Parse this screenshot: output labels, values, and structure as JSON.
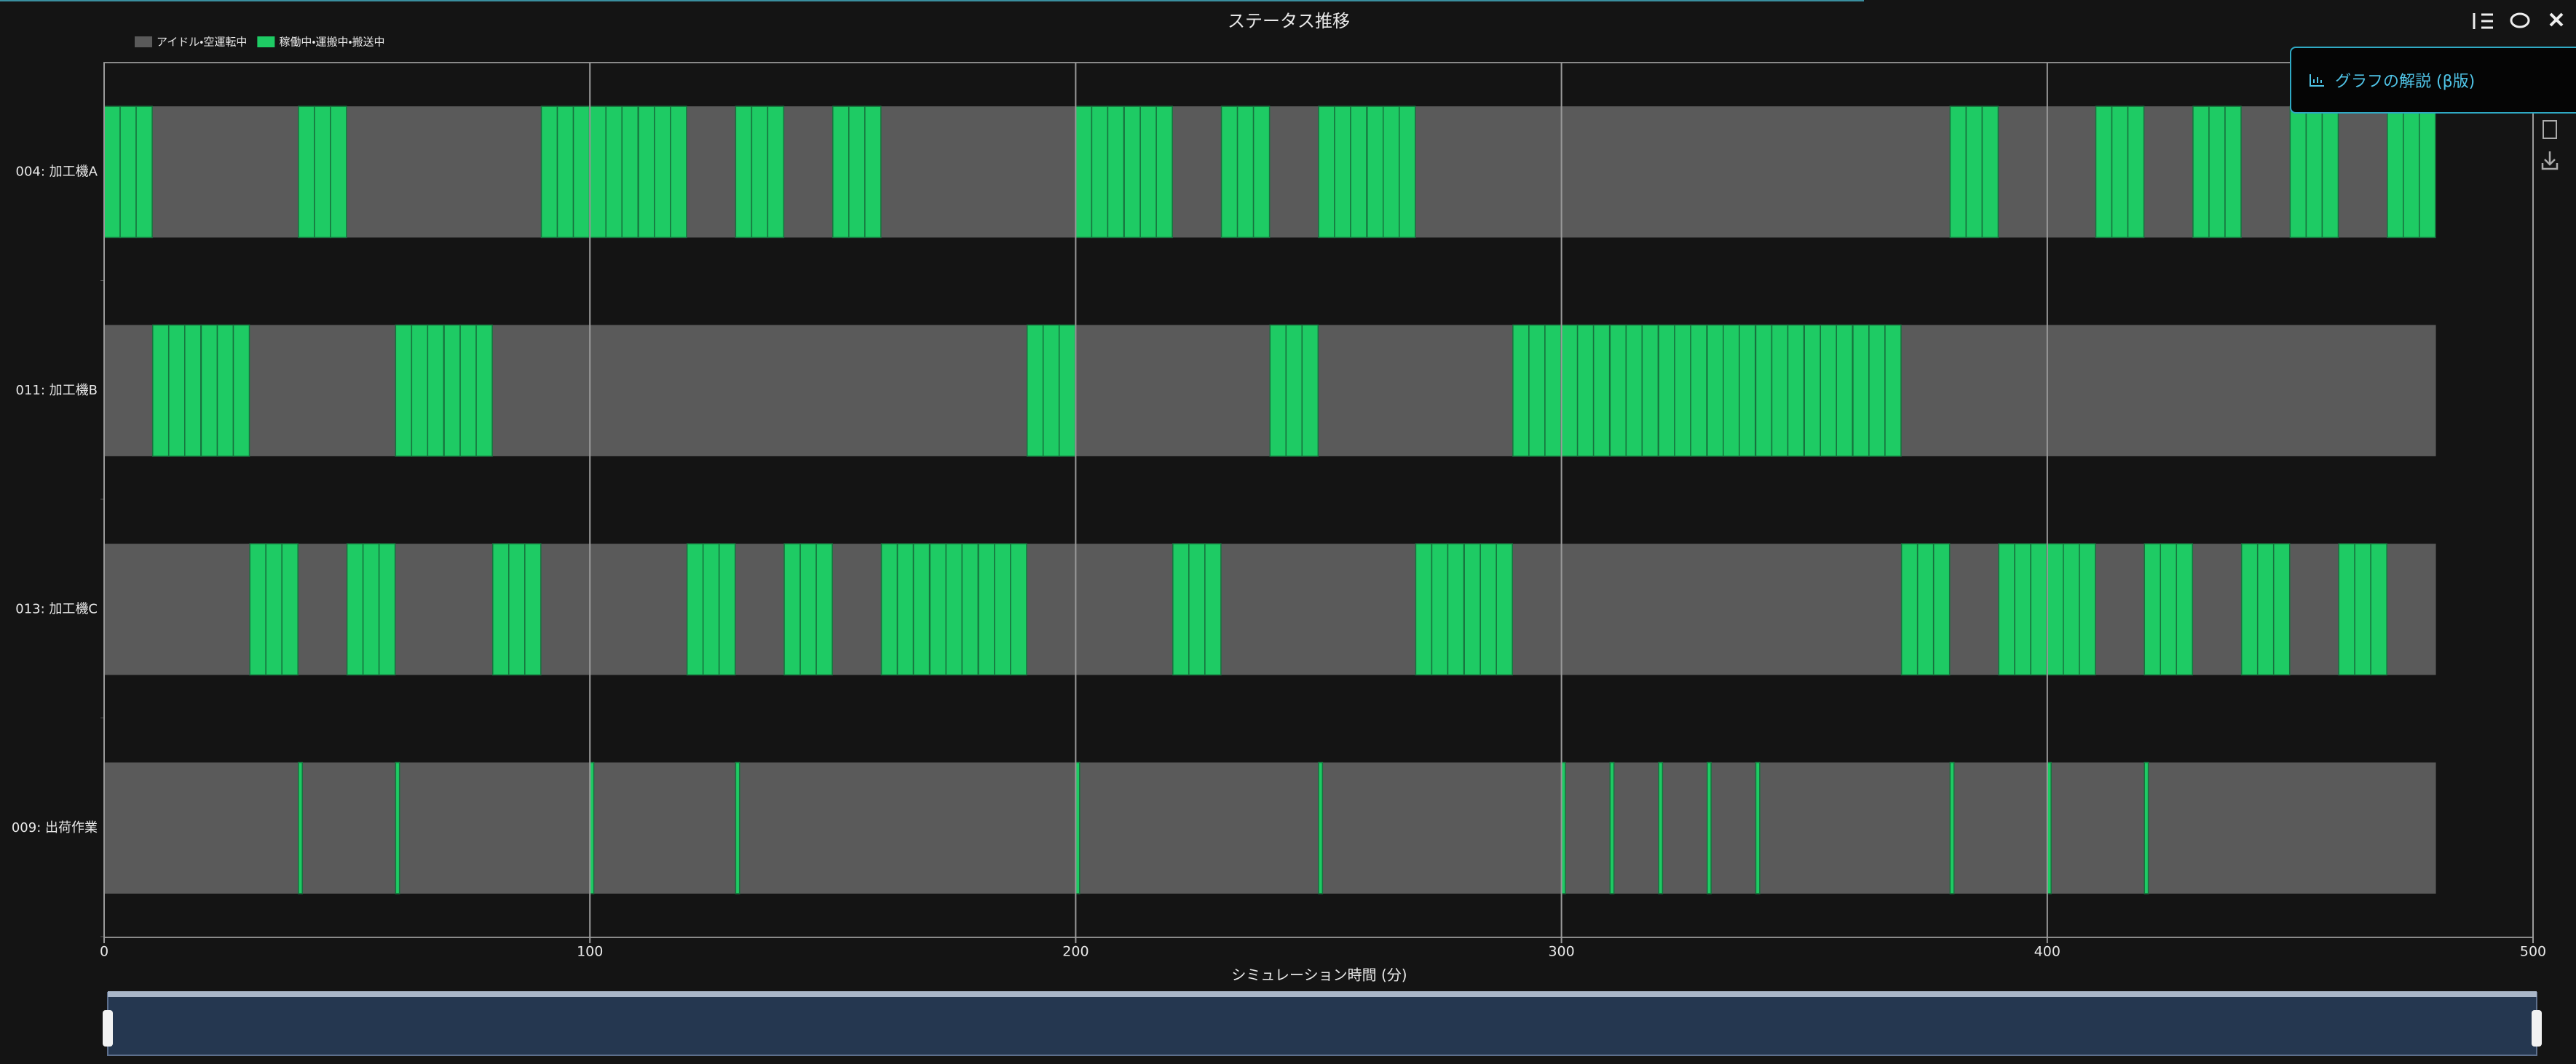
{
  "chart_data": {
    "type": "timeline",
    "title": "ステータス推移",
    "x_label": "シミュレーション時間 (分)",
    "xlim": [
      0,
      500
    ],
    "xticks": [
      0,
      100,
      200,
      300,
      400,
      500
    ],
    "grid": true,
    "legend": "top-left",
    "series": [
      {
        "name": "アイドル・空運転中",
        "color": "#5a5a5a"
      },
      {
        "name": "稼働中・運搬中・搬送中",
        "color": "#1ecb64"
      }
    ],
    "rows": [
      {
        "name": "004: 加工機A",
        "idle": [
          0,
          480
        ],
        "segments": [
          [
            0,
            3.3
          ],
          [
            3.3,
            6.6
          ],
          [
            6.6,
            9.9
          ],
          [
            40,
            43.3
          ],
          [
            43.3,
            46.6
          ],
          [
            46.6,
            49.9
          ],
          [
            90,
            93.3
          ],
          [
            93.3,
            96.6
          ],
          [
            96.6,
            99.9
          ],
          [
            100,
            103.3
          ],
          [
            103.3,
            106.6
          ],
          [
            106.6,
            109.9
          ],
          [
            110,
            113.3
          ],
          [
            113.3,
            116.6
          ],
          [
            116.6,
            119.9
          ],
          [
            130,
            133.3
          ],
          [
            133.3,
            136.6
          ],
          [
            136.6,
            139.9
          ],
          [
            150,
            153.3
          ],
          [
            153.3,
            156.6
          ],
          [
            156.6,
            159.9
          ],
          [
            200,
            203.3
          ],
          [
            203.3,
            206.6
          ],
          [
            206.6,
            209.9
          ],
          [
            210,
            213.3
          ],
          [
            213.3,
            216.6
          ],
          [
            216.6,
            219.9
          ],
          [
            230,
            233.3
          ],
          [
            233.3,
            236.6
          ],
          [
            236.6,
            239.9
          ],
          [
            250,
            253.3
          ],
          [
            253.3,
            256.6
          ],
          [
            256.6,
            259.9
          ],
          [
            260,
            263.3
          ],
          [
            263.3,
            266.6
          ],
          [
            266.6,
            269.9
          ],
          [
            380,
            383.3
          ],
          [
            383.3,
            386.6
          ],
          [
            386.6,
            389.9
          ],
          [
            410,
            413.3
          ],
          [
            413.3,
            416.6
          ],
          [
            416.6,
            419.9
          ],
          [
            430,
            433.3
          ],
          [
            433.3,
            436.6
          ],
          [
            436.6,
            439.9
          ],
          [
            450,
            453.3
          ],
          [
            453.3,
            456.6
          ],
          [
            456.6,
            459.9
          ],
          [
            470,
            473.3
          ],
          [
            473.3,
            476.6
          ],
          [
            476.6,
            479.9
          ]
        ]
      },
      {
        "name": "011: 加工機B",
        "idle": [
          0,
          480
        ],
        "segments": [
          [
            10,
            13.3
          ],
          [
            13.3,
            16.6
          ],
          [
            16.6,
            19.9
          ],
          [
            20,
            23.3
          ],
          [
            23.3,
            26.6
          ],
          [
            26.6,
            29.9
          ],
          [
            60,
            63.3
          ],
          [
            63.3,
            66.6
          ],
          [
            66.6,
            69.9
          ],
          [
            70,
            73.3
          ],
          [
            73.3,
            76.6
          ],
          [
            76.6,
            79.9
          ],
          [
            190,
            193.3
          ],
          [
            193.3,
            196.6
          ],
          [
            196.6,
            199.9
          ],
          [
            240,
            243.3
          ],
          [
            243.3,
            246.6
          ],
          [
            246.6,
            249.9
          ],
          [
            290,
            293.3
          ],
          [
            293.3,
            296.6
          ],
          [
            296.6,
            299.9
          ],
          [
            300,
            303.3
          ],
          [
            303.3,
            306.6
          ],
          [
            306.6,
            309.9
          ],
          [
            310,
            313.3
          ],
          [
            313.3,
            316.6
          ],
          [
            316.6,
            319.9
          ],
          [
            320,
            323.3
          ],
          [
            323.3,
            326.6
          ],
          [
            326.6,
            329.9
          ],
          [
            330,
            333.3
          ],
          [
            333.3,
            336.6
          ],
          [
            336.6,
            339.9
          ],
          [
            340,
            343.3
          ],
          [
            343.3,
            346.6
          ],
          [
            346.6,
            349.9
          ],
          [
            350,
            353.3
          ],
          [
            353.3,
            356.6
          ],
          [
            356.6,
            359.9
          ],
          [
            360,
            363.3
          ],
          [
            363.3,
            366.6
          ],
          [
            366.6,
            369.9
          ]
        ]
      },
      {
        "name": "013: 加工機C",
        "idle": [
          0,
          480
        ],
        "segments": [
          [
            30,
            33.3
          ],
          [
            33.3,
            36.6
          ],
          [
            36.6,
            39.9
          ],
          [
            50,
            53.3
          ],
          [
            53.3,
            56.6
          ],
          [
            56.6,
            59.9
          ],
          [
            80,
            83.3
          ],
          [
            83.3,
            86.6
          ],
          [
            86.6,
            89.9
          ],
          [
            120,
            123.3
          ],
          [
            123.3,
            126.6
          ],
          [
            126.6,
            129.9
          ],
          [
            140,
            143.3
          ],
          [
            143.3,
            146.6
          ],
          [
            146.6,
            149.9
          ],
          [
            160,
            163.3
          ],
          [
            163.3,
            166.6
          ],
          [
            166.6,
            169.9
          ],
          [
            170,
            173.3
          ],
          [
            173.3,
            176.6
          ],
          [
            176.6,
            179.9
          ],
          [
            180,
            183.3
          ],
          [
            183.3,
            186.6
          ],
          [
            186.6,
            189.9
          ],
          [
            220,
            223.3
          ],
          [
            223.3,
            226.6
          ],
          [
            226.6,
            229.9
          ],
          [
            270,
            273.3
          ],
          [
            273.3,
            276.6
          ],
          [
            276.6,
            279.9
          ],
          [
            280,
            283.3
          ],
          [
            283.3,
            286.6
          ],
          [
            286.6,
            289.9
          ],
          [
            370,
            373.3
          ],
          [
            373.3,
            376.6
          ],
          [
            376.6,
            379.9
          ],
          [
            390,
            393.3
          ],
          [
            393.3,
            396.6
          ],
          [
            396.6,
            399.9
          ],
          [
            400,
            403.3
          ],
          [
            403.3,
            406.6
          ],
          [
            406.6,
            409.9
          ],
          [
            420,
            423.3
          ],
          [
            423.3,
            426.6
          ],
          [
            426.6,
            429.9
          ],
          [
            440,
            443.3
          ],
          [
            443.3,
            446.6
          ],
          [
            446.6,
            449.9
          ],
          [
            460,
            463.3
          ],
          [
            463.3,
            466.6
          ],
          [
            466.6,
            469.9
          ]
        ]
      },
      {
        "name": "009: 出荷作業",
        "idle": [
          0,
          480
        ],
        "segments": [
          [
            40,
            40.8
          ],
          [
            60,
            60.8
          ],
          [
            100,
            100.8
          ],
          [
            130,
            130.8
          ],
          [
            200,
            200.8
          ],
          [
            250,
            250.8
          ],
          [
            300,
            300.8
          ],
          [
            310,
            310.8
          ],
          [
            320,
            320.8
          ],
          [
            330,
            330.8
          ],
          [
            340,
            340.8
          ],
          [
            380,
            380.8
          ],
          [
            400,
            400.8
          ],
          [
            420,
            420.8
          ]
        ]
      }
    ]
  },
  "ui": {
    "explain_button": "グラフの解説 (β版)"
  }
}
